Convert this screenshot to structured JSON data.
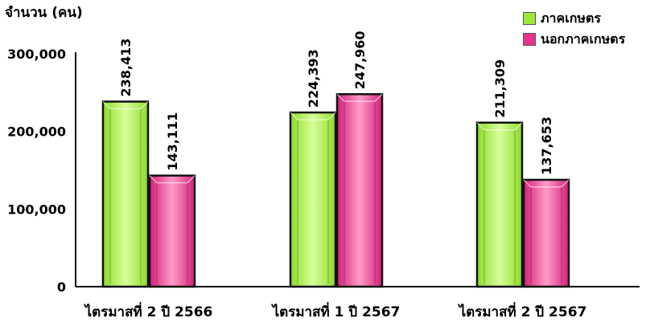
{
  "chart_data": {
    "type": "bar",
    "ylabel": "จำนวน (คน)",
    "categories": [
      "ไตรมาสที่ 2 ปี 2566",
      "ไตรมาสที่ 1 ปี 2567",
      "ไตรมาสที่ 2 ปี 2567"
    ],
    "series": [
      {
        "name": "ภาคเกษตร",
        "values": [
          238413,
          224393,
          211309
        ],
        "color": "#9ee83a",
        "labels": [
          "238,413",
          "224,393",
          "211,309"
        ]
      },
      {
        "name": "นอกภาคเกษตร",
        "values": [
          143111,
          247960,
          137653
        ],
        "color": "#e8348c",
        "labels": [
          "143,111",
          "247,960",
          "137,653"
        ]
      }
    ],
    "yticks": [
      0,
      100000,
      200000,
      300000
    ],
    "ytick_labels": [
      "0",
      "100,000",
      "200,000",
      "300,000"
    ],
    "ylim": [
      0,
      300000
    ],
    "grid": false,
    "legend_position": "top-right"
  }
}
